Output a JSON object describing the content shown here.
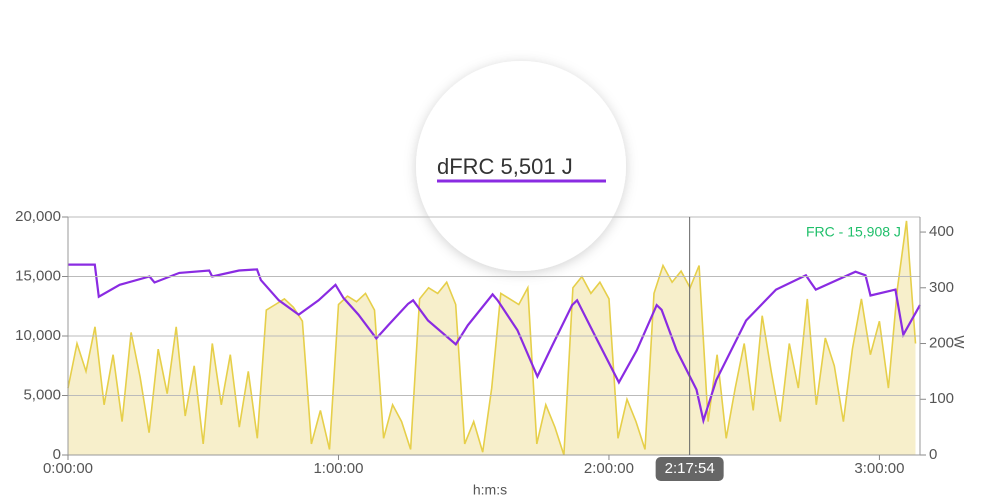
{
  "chart_data": {
    "type": "line",
    "xlabel": "h:m:s",
    "y2label": "W",
    "callout": "dFRC  5,501 J",
    "annotation": "FRC - 15,908 J",
    "cursor": {
      "value": 8274,
      "label": "2:17:54"
    },
    "xlim": [
      0,
      11340
    ],
    "xticks": [
      {
        "value": 0,
        "label": "0:00:00"
      },
      {
        "value": 3600,
        "label": "1:00:00"
      },
      {
        "value": 7200,
        "label": "2:00:00"
      },
      {
        "value": 10800,
        "label": "3:00:00"
      }
    ],
    "ylim": [
      0,
      20000
    ],
    "yticks": [
      0,
      {
        "value": 5000,
        "label": "5,000"
      },
      {
        "value": 10000,
        "label": "10,000"
      },
      {
        "value": 15000,
        "label": "15,000"
      },
      {
        "value": 20000,
        "label": "20,000"
      }
    ],
    "y2lim": [
      0,
      427
    ],
    "y2ticks": [
      0,
      100,
      200,
      300,
      400
    ],
    "grid": true,
    "series": [
      {
        "type": "area",
        "axis": "y2",
        "color": "#e6cf4a",
        "fill": "#f7efcb",
        "x": [
          0,
          120,
          240,
          360,
          480,
          600,
          720,
          840,
          960,
          1080,
          1200,
          1320,
          1440,
          1560,
          1680,
          1800,
          1920,
          2040,
          2160,
          2280,
          2400,
          2520,
          2640,
          2760,
          2880,
          3000,
          3120,
          3240,
          3360,
          3480,
          3600,
          3720,
          3840,
          3960,
          4080,
          4200,
          4320,
          4440,
          4560,
          4680,
          4800,
          4920,
          5040,
          5160,
          5280,
          5400,
          5520,
          5640,
          5760,
          5880,
          6000,
          6120,
          6240,
          6360,
          6480,
          6600,
          6720,
          6840,
          6960,
          7080,
          7200,
          7320,
          7440,
          7560,
          7680,
          7800,
          7920,
          8040,
          8160,
          8280,
          8400,
          8520,
          8640,
          8760,
          8880,
          9000,
          9120,
          9240,
          9360,
          9480,
          9600,
          9720,
          9840,
          9960,
          10080,
          10200,
          10320,
          10440,
          10560,
          10680,
          10800,
          10920,
          11040,
          11160,
          11280
        ],
        "values": [
          120,
          200,
          150,
          230,
          90,
          180,
          60,
          220,
          140,
          40,
          190,
          110,
          230,
          70,
          160,
          20,
          200,
          90,
          180,
          50,
          150,
          30,
          260,
          270,
          280,
          265,
          240,
          20,
          80,
          10,
          270,
          285,
          275,
          290,
          260,
          30,
          90,
          60,
          10,
          280,
          300,
          290,
          310,
          270,
          20,
          60,
          5,
          120,
          290,
          280,
          270,
          300,
          20,
          90,
          50,
          0,
          300,
          320,
          290,
          310,
          280,
          30,
          100,
          60,
          10,
          290,
          340,
          310,
          330,
          300,
          340,
          60,
          180,
          30,
          120,
          200,
          80,
          250,
          150,
          60,
          200,
          120,
          280,
          90,
          210,
          160,
          60,
          190,
          280,
          180,
          240,
          120,
          300,
          420,
          200
        ]
      },
      {
        "axis": "y",
        "color": "#8a2be2",
        "x": [
          0,
          357,
          410,
          688,
          1085,
          1151,
          1482,
          1879,
          1919,
          2276,
          2515,
          2568,
          2806,
          3071,
          3335,
          3560,
          3666,
          3865,
          4103,
          4262,
          4526,
          4593,
          4791,
          5162,
          5321,
          5651,
          5718,
          5982,
          6247,
          6446,
          6710,
          6776,
          7041,
          7332,
          7571,
          7835,
          7901,
          8100,
          8365,
          8457,
          8629,
          9026,
          9424,
          9821,
          9887,
          9953,
          10482,
          10615,
          10681,
          11012,
          11118,
          11340
        ],
        "values": [
          16000,
          16000,
          13300,
          14300,
          15000,
          14500,
          15300,
          15500,
          15000,
          15500,
          15600,
          14700,
          13000,
          11800,
          13000,
          14300,
          13200,
          11800,
          9800,
          10900,
          12700,
          13000,
          11300,
          9300,
          10900,
          13500,
          13000,
          10500,
          6600,
          9200,
          12600,
          13000,
          9700,
          6100,
          8800,
          12600,
          12200,
          8800,
          5500,
          2900,
          6300,
          11300,
          13900,
          15100,
          14500,
          13900,
          15400,
          15100,
          13400,
          13900,
          10100,
          12600
        ]
      }
    ]
  }
}
